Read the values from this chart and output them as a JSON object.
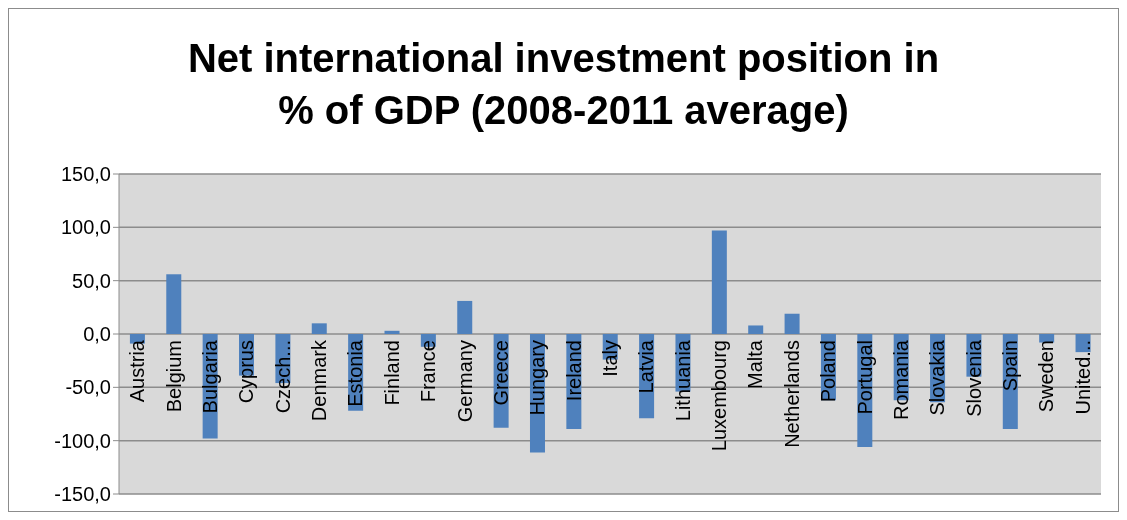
{
  "chart_data": {
    "type": "bar",
    "title": "Net international investment position in % of GDP (2008-2011 average)",
    "categories": [
      "Austria",
      "Belgium",
      "Bulgaria",
      "Cyprus",
      "Czech...",
      "Denmark",
      "Estonia",
      "Finland",
      "France",
      "Germany",
      "Greece",
      "Hungary",
      "Ireland",
      "Italy",
      "Latvia",
      "Lithuania",
      "Luxembourg",
      "Malta",
      "Netherlands",
      "Poland",
      "Portugal",
      "Romania",
      "Slovakia",
      "Slovenia",
      "Spain",
      "Sweden",
      "United..."
    ],
    "values": [
      -9,
      56,
      -98,
      -39,
      -46,
      10,
      -72,
      3,
      -12,
      31,
      -88,
      -111,
      -89,
      -24,
      -79,
      -54,
      97,
      8,
      19,
      -62,
      -106,
      -62,
      -64,
      -40,
      -89,
      -8,
      -17
    ],
    "color": "#4f81bd",
    "ylim": [
      -150,
      150
    ],
    "yticks": [
      {
        "value": -150,
        "label": "-150,0"
      },
      {
        "value": -100,
        "label": "-100,0"
      },
      {
        "value": -50,
        "label": "-50,0"
      },
      {
        "value": 0,
        "label": "0,0"
      },
      {
        "value": 50,
        "label": "50,0"
      },
      {
        "value": 100,
        "label": "100,0"
      },
      {
        "value": 150,
        "label": "150,0"
      }
    ],
    "grid": "y",
    "legend": false
  }
}
